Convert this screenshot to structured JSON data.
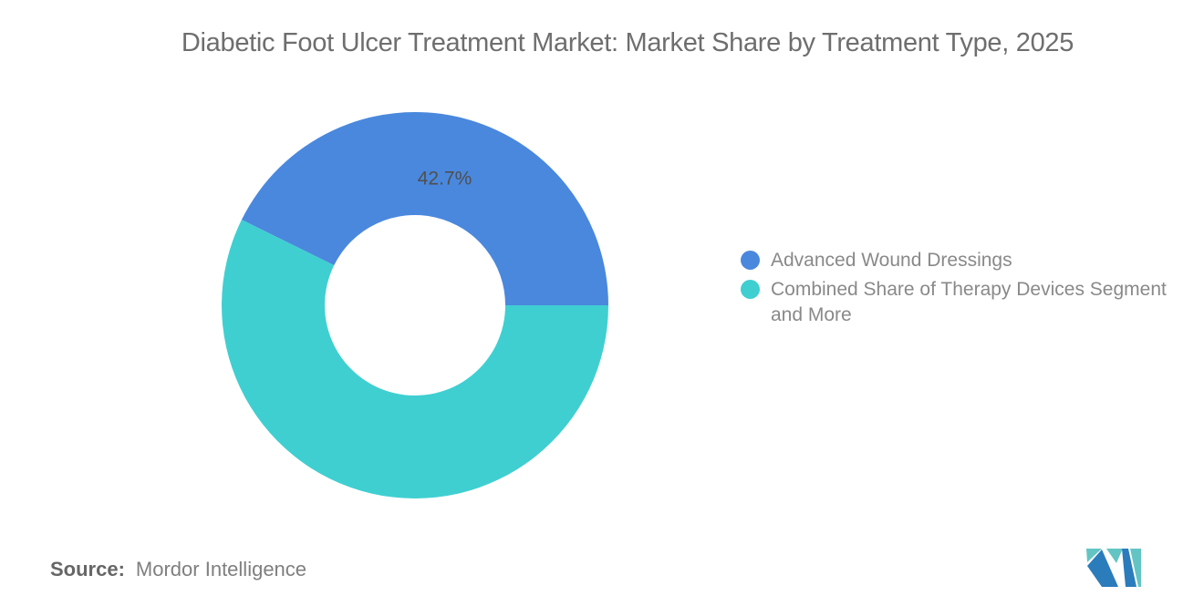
{
  "title": "Diabetic Foot Ulcer Treatment Market: Market Share by Treatment Type, 2025",
  "colors": {
    "blue": "#4A88DD",
    "teal": "#3FCFD1",
    "title_gray": "#6e6e6e",
    "legend_gray": "#898989",
    "label_gray": "#4f4f4f",
    "logo_blue": "#2B7CBB",
    "logo_teal": "#63C5C3"
  },
  "chart_data": {
    "type": "pie",
    "donut": true,
    "title": "Diabetic Foot Ulcer Treatment Market: Market Share by Treatment Type, 2025",
    "start_angle_deg": 0,
    "direction": "counterclockwise",
    "inner_radius_ratio": 0.467,
    "legend_position": "right",
    "slices": [
      {
        "label": "Advanced Wound Dressings",
        "value": 42.7,
        "display_label": "42.7%",
        "color": "#4A88DD"
      },
      {
        "label": "Combined Share of Therapy Devices Segment and More",
        "value": 57.3,
        "display_label": "",
        "color": "#3FCFD1"
      }
    ]
  },
  "legend": {
    "items": [
      {
        "label": "Advanced Wound Dressings",
        "color": "#4A88DD"
      },
      {
        "label": "Combined Share of Therapy Devices Segment and More",
        "color": "#3FCFD1"
      }
    ]
  },
  "source": {
    "prefix": "Source:",
    "text": "Mordor Intelligence"
  },
  "logo": {
    "name": "mordor-intelligence-logo"
  }
}
